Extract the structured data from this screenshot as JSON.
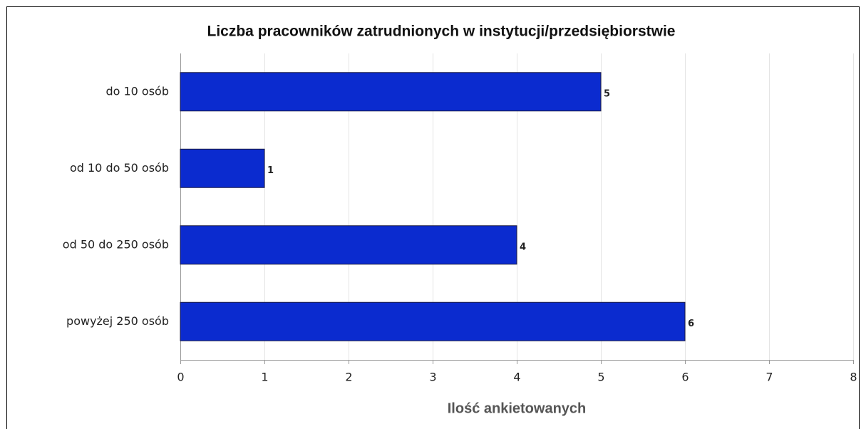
{
  "chart_data": {
    "type": "bar",
    "orientation": "horizontal",
    "title": "Liczba pracowników zatrudnionych w instytucji/przedsiębiorstwie",
    "x_label": "Ilość ankietowanych",
    "categories": [
      "do 10 osób",
      "od 10 do 50 osób",
      "od 50 do 250 osób",
      "powyżej 250 osób"
    ],
    "values": [
      5,
      1,
      4,
      6
    ],
    "color": "#0b2bcf",
    "xlim": [
      0,
      8
    ],
    "xticks": [
      0,
      1,
      2,
      3,
      4,
      5,
      6,
      7,
      8
    ],
    "grid": true
  }
}
